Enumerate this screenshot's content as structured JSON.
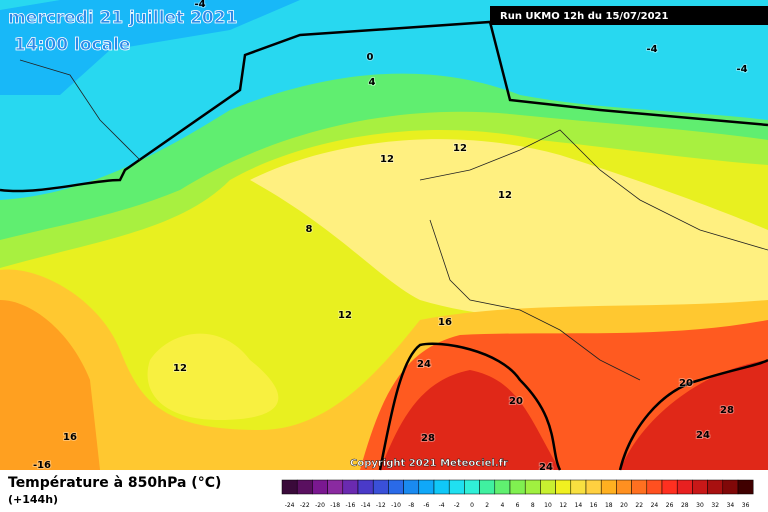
{
  "header": {
    "date": "mercredi 21 juillet 2021",
    "time": "14:00 locale",
    "run": "Run UKMO 12h du 15/07/2021"
  },
  "copyright": "Copyright 2021 Meteociel.fr",
  "footer": {
    "title": "Température à 850hPa (°C)",
    "lead": "(+144h)"
  },
  "contour_labels": [
    "-4",
    "0",
    "4",
    "-4",
    "-4",
    "12",
    "12",
    "12",
    "8",
    "12",
    "12",
    "16",
    "24",
    "20",
    "28",
    "20",
    "28",
    "24",
    "16",
    "-16",
    "24"
  ],
  "colorbar": {
    "values": [
      -24,
      -22,
      -20,
      -18,
      -16,
      -14,
      -12,
      -10,
      -8,
      -6,
      -4,
      -2,
      0,
      2,
      4,
      6,
      8,
      10,
      12,
      14,
      16,
      18,
      20,
      22,
      24,
      26,
      28,
      30,
      32,
      34,
      36
    ],
    "colors": [
      "#3a0a3a",
      "#5a1060",
      "#7a1890",
      "#8a2aa0",
      "#6a2ab0",
      "#4a3ac8",
      "#3a50d8",
      "#2a6ae8",
      "#1a8af0",
      "#10a8f8",
      "#10c8f8",
      "#20e0f0",
      "#30f0d8",
      "#40f0a0",
      "#60f070",
      "#80f050",
      "#a0f040",
      "#c8f030",
      "#f0f020",
      "#f8e040",
      "#ffd040",
      "#ffb020",
      "#ff9020",
      "#ff7020",
      "#ff5020",
      "#ff3020",
      "#e82020",
      "#c81818",
      "#a81010",
      "#800808",
      "#400000"
    ]
  }
}
